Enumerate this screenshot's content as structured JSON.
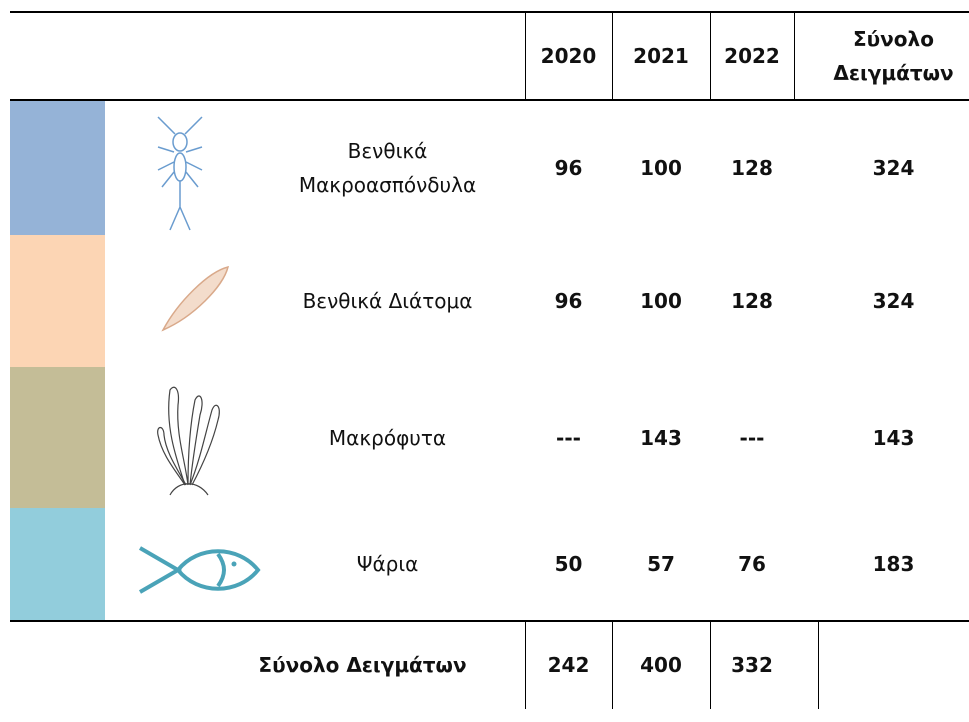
{
  "header": [
    "2020",
    "2021",
    "2022",
    "Σύνολο\nΔειγμάτων"
  ],
  "table": {
    "rows": [
      [
        "Βενθικά\nΜακροασπόνδυλα",
        96,
        100,
        128,
        324
      ],
      [
        "Βενθικά Διάτομα",
        96,
        100,
        128,
        324
      ],
      [
        "Μακρόφυτα",
        "---",
        143,
        "---",
        143
      ],
      [
        "Ψάρια",
        50,
        57,
        76,
        183
      ]
    ]
  },
  "footer": {
    "label": "Σύνολο Δειγμάτων",
    "values": [
      242,
      400,
      332
    ]
  }
}
